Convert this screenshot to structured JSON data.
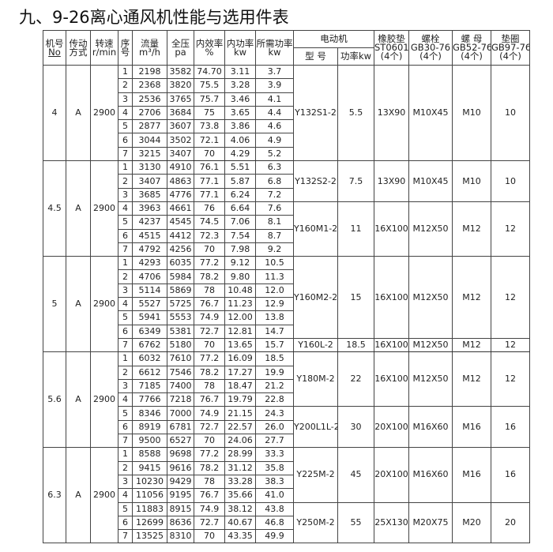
{
  "title": "九、9-26离心通风机性能与选用件表",
  "headers": {
    "fan_no": "机号",
    "fan_no_sub": "No",
    "drive": "传动",
    "drive_sub": "方式",
    "speed": "转速",
    "speed_sub": "r/min",
    "seq": "序",
    "seq_sub": "号",
    "flow": "流量",
    "flow_sub": "m³/h",
    "pressure": "全压",
    "pressure_sub": "pa",
    "efficiency": "内效率",
    "efficiency_sub": "%",
    "inner_power": "内功率",
    "inner_power_sub": "kw",
    "required_power": "所需功率",
    "required_power_sub": "kw",
    "motor": "电动机",
    "motor_model": "型 号",
    "motor_power": "功率kw",
    "gasket": "橡胶垫",
    "gasket_sub": "ST0601",
    "gasket_qty": "(4个)",
    "bolt": "螺栓",
    "bolt_sub": "GB30-76",
    "bolt_qty": "(4个)",
    "nut": "螺 母",
    "nut_sub": "GB52-76",
    "nut_qty": "(4个)",
    "washer": "垫圈",
    "washer_sub": "GB97-76",
    "washer_qty": "(4个)"
  },
  "groups": [
    {
      "fan_no": "4",
      "drive": "A",
      "speed": "2900",
      "rows": [
        [
          "1",
          "2198",
          "3582",
          "74.70",
          "3.11",
          "3.7"
        ],
        [
          "2",
          "2368",
          "3820",
          "75.5",
          "3.28",
          "3.9"
        ],
        [
          "3",
          "2536",
          "3765",
          "75.7",
          "3.46",
          "4.1"
        ],
        [
          "4",
          "2706",
          "3684",
          "75",
          "3.65",
          "4.4"
        ],
        [
          "5",
          "2877",
          "3607",
          "73.8",
          "3.86",
          "4.6"
        ],
        [
          "6",
          "3044",
          "3502",
          "72.1",
          "4.06",
          "4.9"
        ],
        [
          "7",
          "3215",
          "3407",
          "70",
          "4.29",
          "5.2"
        ]
      ],
      "motors": [
        {
          "rows": 7,
          "model": "Y132S1-2",
          "power": "5.5",
          "gasket": "13X90",
          "bolt": "M10X45",
          "nut": "M10",
          "washer": "10"
        }
      ]
    },
    {
      "fan_no": "4.5",
      "drive": "A",
      "speed": "2900",
      "rows": [
        [
          "1",
          "3130",
          "4910",
          "76.1",
          "5.51",
          "6.3"
        ],
        [
          "2",
          "3407",
          "4863",
          "77.1",
          "5.87",
          "6.8"
        ],
        [
          "3",
          "3685",
          "4776",
          "77.1",
          "6.24",
          "7.2"
        ],
        [
          "4",
          "3963",
          "4661",
          "76",
          "6.64",
          "7.6"
        ],
        [
          "5",
          "4237",
          "4545",
          "74.5",
          "7.06",
          "8.1"
        ],
        [
          "6",
          "4515",
          "4412",
          "72.3",
          "7.54",
          "8.7"
        ],
        [
          "7",
          "4792",
          "4256",
          "70",
          "7.98",
          "9.2"
        ]
      ],
      "motors": [
        {
          "rows": 3,
          "model": "Y132S2-2",
          "power": "7.5",
          "gasket": "13X90",
          "bolt": "M10X45",
          "nut": "M10",
          "washer": "10"
        },
        {
          "rows": 4,
          "model": "Y160M1-2",
          "power": "11",
          "gasket": "16X100",
          "bolt": "M12X50",
          "nut": "M12",
          "washer": "12"
        }
      ]
    },
    {
      "fan_no": "5",
      "drive": "A",
      "speed": "2900",
      "rows": [
        [
          "1",
          "4293",
          "6035",
          "77.2",
          "9.12",
          "10.5"
        ],
        [
          "2",
          "4706",
          "5984",
          "78.2",
          "9.80",
          "11.3"
        ],
        [
          "3",
          "5114",
          "5869",
          "78",
          "10.48",
          "12.0"
        ],
        [
          "4",
          "5527",
          "5725",
          "76.7",
          "11.23",
          "12.9"
        ],
        [
          "5",
          "5941",
          "5553",
          "74.9",
          "12.00",
          "13.8"
        ],
        [
          "6",
          "6349",
          "5381",
          "72.7",
          "12.81",
          "14.7"
        ],
        [
          "7",
          "6762",
          "5180",
          "70",
          "13.65",
          "15.7"
        ]
      ],
      "motors": [
        {
          "rows": 6,
          "model": "Y160M2-2",
          "power": "15",
          "gasket": "16X100",
          "bolt": "M12X50",
          "nut": "M12",
          "washer": "12"
        },
        {
          "rows": 1,
          "model": "Y160L-2",
          "power": "18.5",
          "gasket": "16X100",
          "bolt": "M12X50",
          "nut": "M12",
          "washer": "12"
        }
      ]
    },
    {
      "fan_no": "5.6",
      "drive": "A",
      "speed": "2900",
      "rows": [
        [
          "1",
          "6032",
          "7610",
          "77.2",
          "16.09",
          "18.5"
        ],
        [
          "2",
          "6612",
          "7546",
          "78.2",
          "17.27",
          "19.9"
        ],
        [
          "3",
          "7185",
          "7400",
          "78",
          "18.47",
          "21.2"
        ],
        [
          "4",
          "7766",
          "7218",
          "76.7",
          "19.79",
          "22.8"
        ],
        [
          "5",
          "8346",
          "7000",
          "74.9",
          "21.15",
          "24.3"
        ],
        [
          "6",
          "8919",
          "6781",
          "72.7",
          "22.57",
          "26.0"
        ],
        [
          "7",
          "9500",
          "6527",
          "70",
          "24.06",
          "27.7"
        ]
      ],
      "motors": [
        {
          "rows": 4,
          "model": "Y180M-2",
          "power": "22",
          "gasket": "16X100",
          "bolt": "M12X50",
          "nut": "M12",
          "washer": "12"
        },
        {
          "rows": 3,
          "model": "Y200L1L-2",
          "power": "30",
          "gasket": "20X100",
          "bolt": "M16X60",
          "nut": "M16",
          "washer": "16"
        }
      ]
    },
    {
      "fan_no": "6.3",
      "drive": "A",
      "speed": "2900",
      "rows": [
        [
          "1",
          "8588",
          "9698",
          "77.2",
          "28.99",
          "33.3"
        ],
        [
          "2",
          "9415",
          "9616",
          "78.2",
          "31.12",
          "35.8"
        ],
        [
          "3",
          "10230",
          "9429",
          "78",
          "33.28",
          "38.3"
        ],
        [
          "4",
          "11056",
          "9195",
          "76.7",
          "35.66",
          "41.0"
        ],
        [
          "5",
          "11883",
          "8915",
          "74.9",
          "38.12",
          "43.8"
        ],
        [
          "6",
          "12699",
          "8636",
          "72.7",
          "40.67",
          "46.8"
        ],
        [
          "7",
          "13525",
          "8310",
          "70",
          "43.35",
          "49.9"
        ]
      ],
      "motors": [
        {
          "rows": 4,
          "model": "Y225M-2",
          "power": "45",
          "gasket": "20X100",
          "bolt": "M16X60",
          "nut": "M16",
          "washer": "16"
        },
        {
          "rows": 3,
          "model": "Y250M-2",
          "power": "55",
          "gasket": "25X130",
          "bolt": "M20X75",
          "nut": "M20",
          "washer": "20"
        }
      ]
    }
  ]
}
